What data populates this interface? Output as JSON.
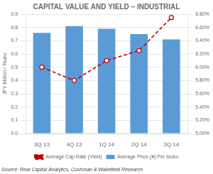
{
  "chart_data": {
    "type": "bar",
    "title": "CAPITAL VALUE AND YIELD – INDUSTRIAL",
    "categories": [
      "3Q 13",
      "4Q 13",
      "1Q 14",
      "2Q 14",
      "3Q 14"
    ],
    "series": [
      {
        "name": "Average Price (¥) Per tsubo",
        "type": "bar",
        "color": "#5b9bd5",
        "values": [
          0.76,
          0.81,
          0.79,
          0.75,
          0.71
        ]
      },
      {
        "name": "Average Cap Rate (Yield)",
        "type": "line",
        "axis": "y2",
        "color": "#c00000",
        "line_style": "dashed",
        "marker": "circle",
        "values": [
          6.0,
          5.8,
          6.1,
          6.25,
          6.75
        ]
      }
    ],
    "ylabel": "JPY Million / Tsubo",
    "ylim": [
      0.0,
      0.9
    ],
    "yticks": [
      {
        "value": 0.0,
        "label": "0.0"
      },
      0.1,
      0.2,
      0.3,
      0.4,
      0.5,
      0.6,
      0.7,
      0.8,
      0.9
    ],
    "y2lim": [
      5.0,
      6.8
    ],
    "y2ticks": [
      {
        "value": 5.0,
        "label": "5.00%"
      },
      {
        "value": 5.2,
        "label": "5.20%"
      },
      {
        "value": 5.4,
        "label": "5.40%"
      },
      {
        "value": 5.6,
        "label": "5.60%"
      },
      {
        "value": 5.8,
        "label": "5.80%"
      },
      {
        "value": 6.0,
        "label": "6.00%"
      },
      {
        "value": 6.2,
        "label": "6.20%"
      },
      {
        "value": 6.4,
        "label": "6.40%"
      },
      {
        "value": 6.6,
        "label": "6.60%"
      },
      {
        "value": 6.8,
        "label": "6.80%"
      }
    ],
    "grid": true,
    "legend": "bottom",
    "annotations": [
      "Source: Real Capital Analytics, Cushman & Wakefield Research"
    ]
  }
}
